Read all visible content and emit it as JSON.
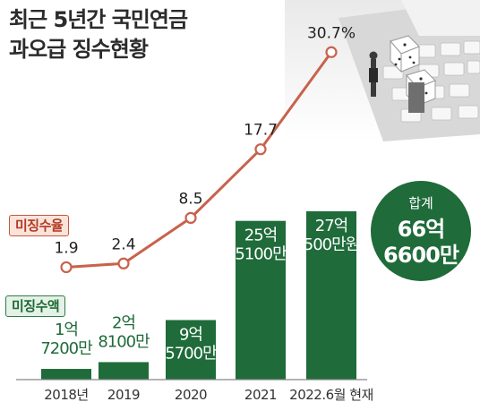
{
  "title_lines": [
    "최근 5년간 국민연금",
    "과오급 징수현황"
  ],
  "legend": {
    "rate": "미징수율",
    "amount": "미징수액"
  },
  "total": {
    "label": "합계",
    "value_lines": [
      "66억",
      "6600만"
    ]
  },
  "colors": {
    "bar": "#1f6b3a",
    "line": "#c8624c",
    "axis": "#888888",
    "tag_rate": "#c4583a",
    "tag_amount": "#2f7d46"
  },
  "chart_data": {
    "type": "bar+line",
    "categories": [
      "2018년",
      "2019",
      "2020",
      "2021",
      "2022.6월 현재"
    ],
    "bar_label_lines": [
      [
        "1억",
        "7200만"
      ],
      [
        "2억",
        "8100만"
      ],
      [
        "9억",
        "5700만"
      ],
      [
        "25억",
        "5100만"
      ],
      [
        "27억",
        "500만원"
      ]
    ],
    "bar_values": [
      17200,
      28100,
      95700,
      255100,
      270500
    ],
    "bar_unit": "만원",
    "line_values": [
      1.9,
      2.4,
      8.5,
      17.7,
      30.7
    ],
    "line_labels": [
      "1.9",
      "2.4",
      "8.5",
      "17.7",
      "30.7%"
    ],
    "line_unit": "%",
    "legend": [
      "미징수율",
      "미징수액"
    ]
  }
}
